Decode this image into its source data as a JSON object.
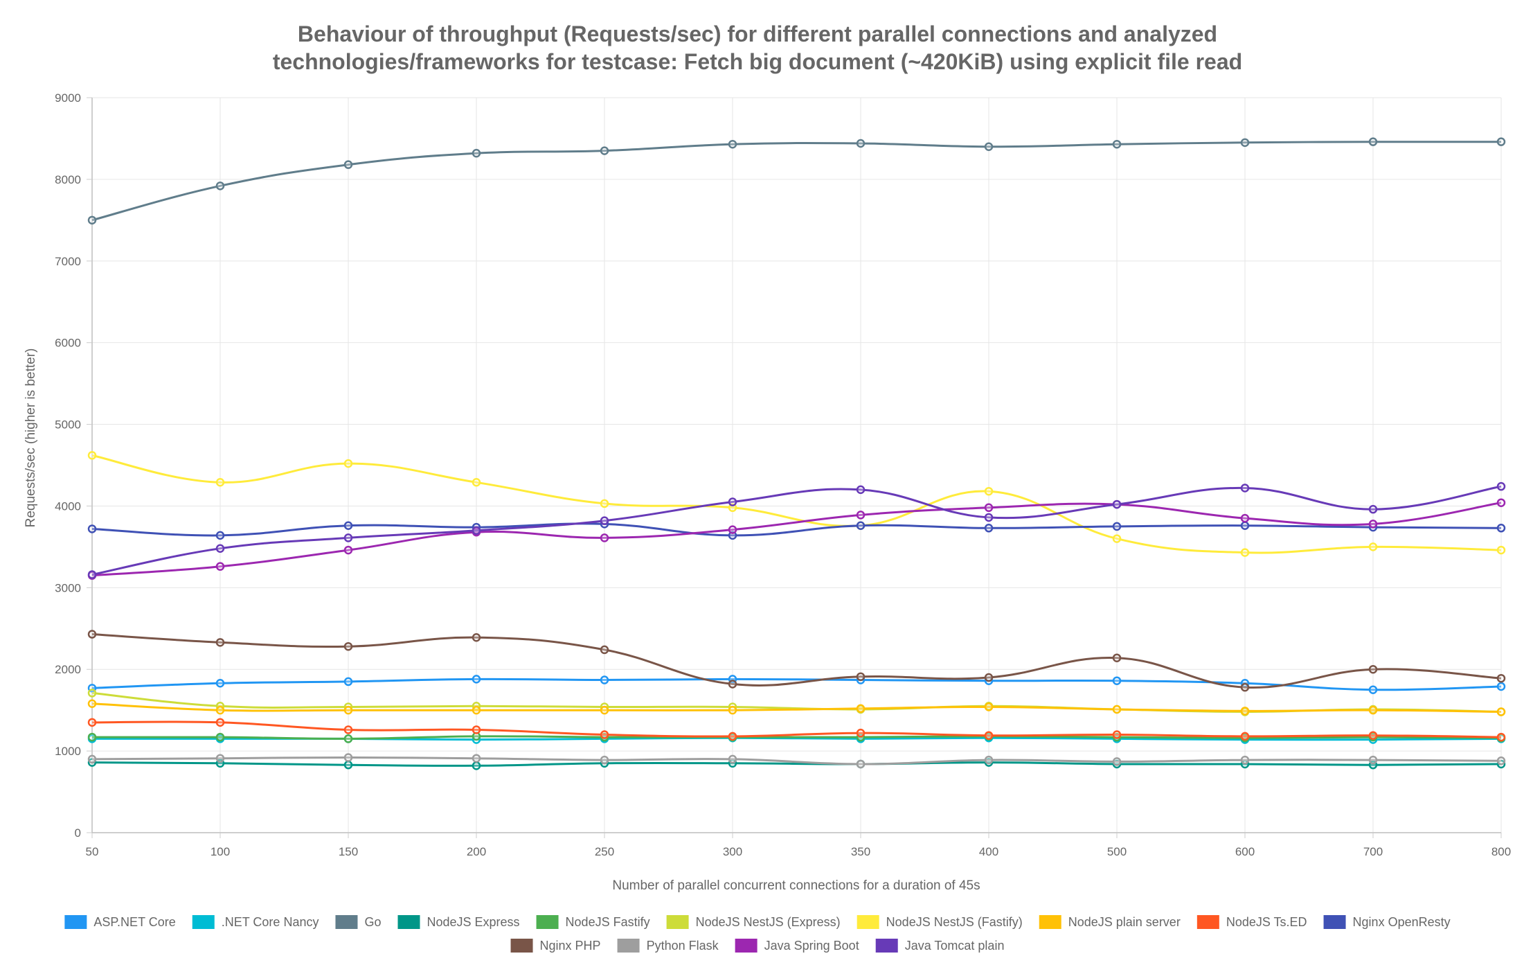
{
  "chart_data": {
    "type": "line",
    "title": [
      "Behaviour of throughput (Requests/sec) for different parallel connections and analyzed",
      "technologies/frameworks for testcase: Fetch big document (~420KiB) using explicit file read"
    ],
    "xlabel": "Number of parallel concurrent connections for a duration of 45s",
    "ylabel": "Requests/sec (higher is better)",
    "categories": [
      "50",
      "100",
      "150",
      "200",
      "250",
      "300",
      "350",
      "400",
      "500",
      "600",
      "700",
      "800"
    ],
    "ylim": [
      0,
      9000
    ],
    "yticks": [
      0,
      1000,
      2000,
      3000,
      4000,
      5000,
      6000,
      7000,
      8000,
      9000
    ],
    "grid": true,
    "legend_position": "bottom",
    "series": [
      {
        "name": "ASP.NET Core",
        "color": "#2196f3",
        "values": [
          1770,
          1830,
          1850,
          1880,
          1870,
          1880,
          1870,
          1860,
          1860,
          1830,
          1750,
          1790
        ]
      },
      {
        "name": ".NET Core Nancy",
        "color": "#00bcd4",
        "values": [
          1150,
          1150,
          1150,
          1140,
          1150,
          1160,
          1150,
          1160,
          1150,
          1140,
          1140,
          1150
        ]
      },
      {
        "name": "Go",
        "color": "#607d8b",
        "values": [
          7500,
          7920,
          8180,
          8320,
          8350,
          8430,
          8440,
          8400,
          8430,
          8450,
          8460,
          8460
        ]
      },
      {
        "name": "NodeJS Express",
        "color": "#009688",
        "values": [
          860,
          850,
          830,
          820,
          850,
          850,
          840,
          860,
          840,
          840,
          830,
          840
        ]
      },
      {
        "name": "NodeJS Fastify",
        "color": "#4caf50",
        "values": [
          1170,
          1170,
          1150,
          1180,
          1170,
          1170,
          1170,
          1180,
          1170,
          1160,
          1170,
          1160
        ]
      },
      {
        "name": "NodeJS NestJS (Express)",
        "color": "#cddc39",
        "values": [
          1710,
          1550,
          1540,
          1550,
          1540,
          1540,
          1510,
          1550,
          1510,
          1480,
          1510,
          1480
        ]
      },
      {
        "name": "NodeJS NestJS (Fastify)",
        "color": "#ffeb3b",
        "values": [
          4620,
          4290,
          4520,
          4290,
          4030,
          3980,
          3760,
          4180,
          3600,
          3430,
          3500,
          3460
        ]
      },
      {
        "name": "NodeJS plain server",
        "color": "#ffc107",
        "values": [
          1580,
          1500,
          1500,
          1500,
          1500,
          1500,
          1520,
          1540,
          1510,
          1490,
          1500,
          1480
        ]
      },
      {
        "name": "NodeJS Ts.ED",
        "color": "#ff5722",
        "values": [
          1350,
          1350,
          1260,
          1260,
          1200,
          1180,
          1220,
          1190,
          1200,
          1180,
          1190,
          1170
        ]
      },
      {
        "name": "Nginx OpenResty",
        "color": "#3f51b5",
        "values": [
          3720,
          3640,
          3760,
          3740,
          3780,
          3640,
          3760,
          3730,
          3750,
          3760,
          3740,
          3730
        ]
      },
      {
        "name": "Nginx PHP",
        "color": "#795548",
        "values": [
          2430,
          2330,
          2280,
          2390,
          2240,
          1820,
          1910,
          1900,
          2140,
          1780,
          2000,
          1890
        ]
      },
      {
        "name": "Python Flask",
        "color": "#9e9e9e",
        "values": [
          900,
          910,
          920,
          910,
          890,
          900,
          840,
          890,
          870,
          890,
          890,
          880
        ]
      },
      {
        "name": "Java Spring Boot",
        "color": "#9c27b0",
        "values": [
          3150,
          3260,
          3460,
          3680,
          3610,
          3710,
          3890,
          3980,
          4020,
          3850,
          3780,
          4040
        ]
      },
      {
        "name": "Java Tomcat plain",
        "color": "#673ab7",
        "values": [
          3160,
          3480,
          3610,
          3700,
          3820,
          4050,
          4200,
          3860,
          4020,
          4220,
          3960,
          4240
        ]
      }
    ]
  }
}
